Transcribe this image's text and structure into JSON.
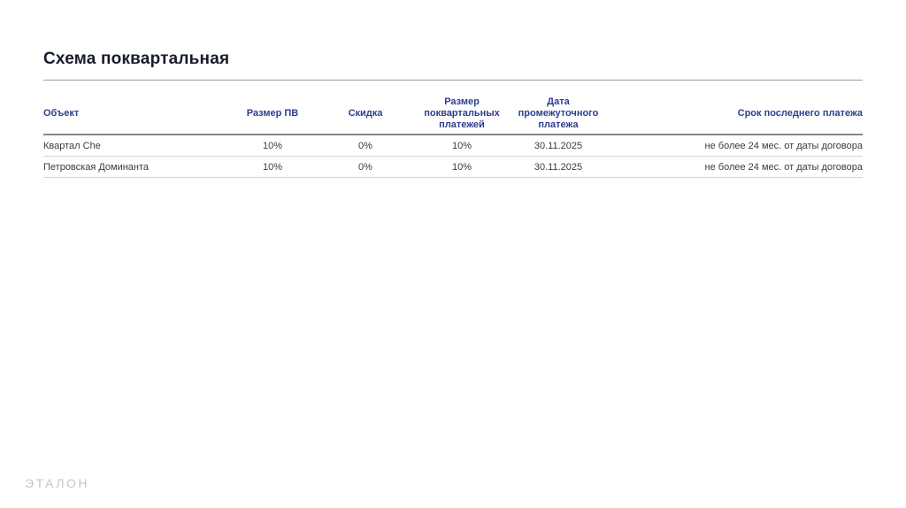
{
  "title": "Схема поквартальная",
  "table": {
    "columns": [
      {
        "label": "Объект"
      },
      {
        "label": "Размер ПВ"
      },
      {
        "label": "Скидка"
      },
      {
        "label": "Размер\nпоквартальных\nплатежей"
      },
      {
        "label": "Дата\nпромежуточного\nплатежа"
      },
      {
        "label": "Срок последнего платежа"
      }
    ],
    "rows": [
      {
        "cells": [
          "Квартал Che",
          "10%",
          "0%",
          "10%",
          "30.11.2025",
          "не более 24 мес. от даты договора"
        ]
      },
      {
        "cells": [
          "Петровская Доминанта",
          "10%",
          "0%",
          "10%",
          "30.11.2025",
          "не более 24 мес. от даты договора"
        ]
      }
    ]
  },
  "footer": {
    "logo": "ЭТАЛОН"
  },
  "colors": {
    "header_text": "#2c3f8f",
    "title_text": "#171c2e",
    "body_text": "#3b3b3b",
    "logo_text": "#c6c6c6",
    "rule": "#9e9e9e",
    "header_border": "#87878f",
    "row_border": "#d4d4d4",
    "background": "#ffffff"
  }
}
